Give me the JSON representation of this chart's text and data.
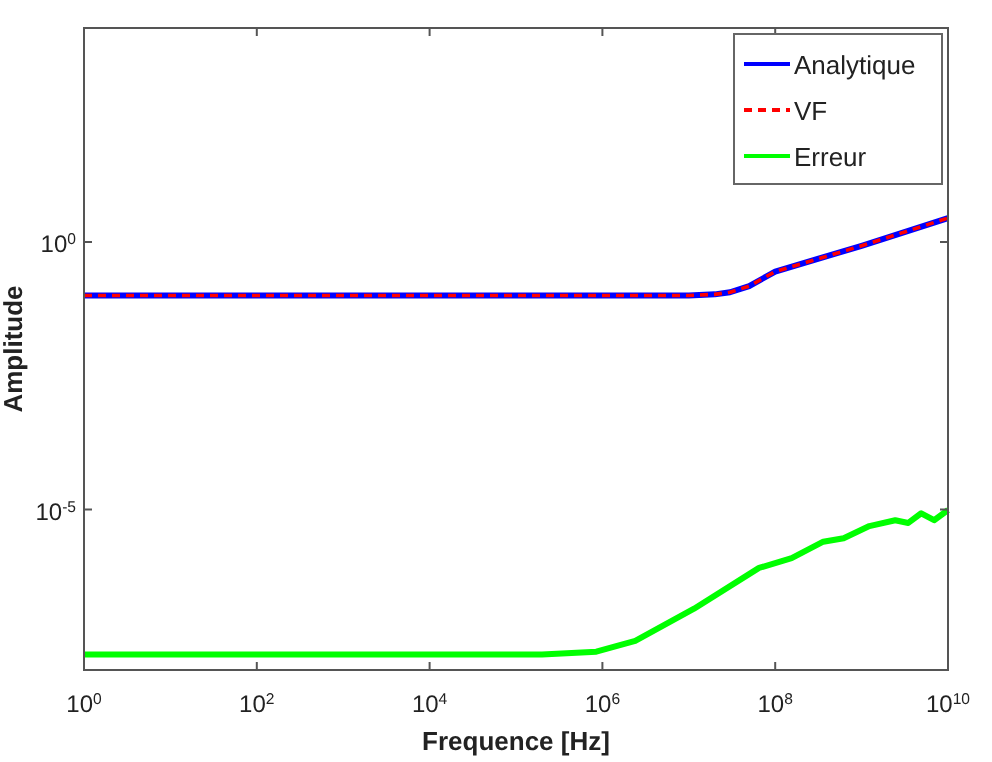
{
  "chart_data": {
    "type": "line",
    "xlabel": "Frequence [Hz]",
    "ylabel": "Amplitude",
    "log": "xy",
    "grid": false,
    "legend": "top right",
    "xlim": [
      1,
      10000000000
    ],
    "ylim": [
      1e-08,
      10000
    ],
    "xticks": [
      {
        "value": 1,
        "label": "10$^{0}$"
      },
      {
        "value": 100,
        "label": "10$^{2}$"
      },
      {
        "value": 10000,
        "label": "10$^{4}$"
      },
      {
        "value": 1000000,
        "label": "10$^{6}$"
      },
      {
        "value": 100000000,
        "label": "10$^{8}$"
      },
      {
        "value": 10000000000,
        "label": "10$^{10}$"
      }
    ],
    "yticks": [
      {
        "value": 1e-05,
        "label": "10$^{-5}$"
      },
      {
        "value": 1,
        "label": "10$^{0}$"
      }
    ],
    "series": [
      {
        "name": "Analytique",
        "color": "#0000ff",
        "line_style": "solid",
        "x": [
          1,
          10000000,
          20000000,
          30000000,
          50000000,
          100000000,
          1000000000,
          10000000000
        ],
        "values": [
          0.1,
          0.1,
          0.105,
          0.115,
          0.15,
          0.28,
          0.85,
          2.8
        ]
      },
      {
        "name": "VF",
        "color": "#ff0000",
        "line_style": "dashed",
        "x": [
          1,
          10000000,
          20000000,
          30000000,
          50000000,
          100000000,
          1000000000,
          10000000000
        ],
        "values": [
          0.1,
          0.1,
          0.105,
          0.115,
          0.15,
          0.28,
          0.85,
          2.8
        ]
      },
      {
        "name": "Erreur",
        "color": "#00ff00",
        "line_style": "solid",
        "x": [
          1,
          200000,
          850000,
          2400000,
          11500000,
          65000000,
          155000000,
          360000000,
          620000000,
          1230000000,
          2450000000,
          3470000000,
          4900000000,
          6900000000,
          10000000000
        ],
        "values": [
          1.95e-08,
          1.95e-08,
          2.2e-08,
          3.5e-08,
          1.4e-07,
          8.1e-07,
          1.23e-06,
          2.5e-06,
          2.9e-06,
          4.9e-06,
          6.3e-06,
          5.6e-06,
          8.5e-06,
          6.3e-06,
          9.8e-06
        ]
      }
    ]
  }
}
